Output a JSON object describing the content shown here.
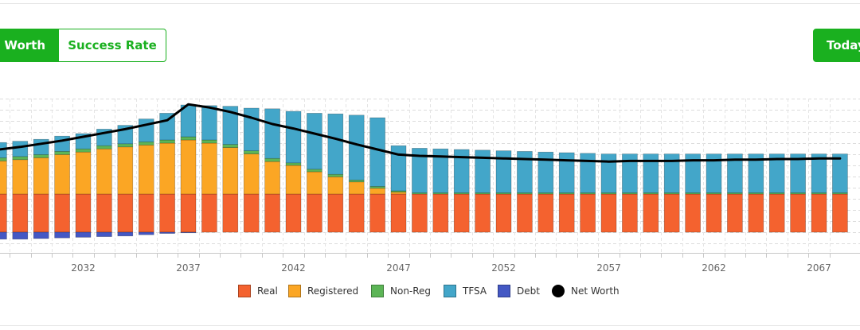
{
  "buttons": {
    "net_worth": "Net Worth",
    "success_rate": "Success Rate",
    "today": "Today's $"
  },
  "colors": {
    "real": "#f4622f",
    "registered": "#fba624",
    "nonreg": "#5cb556",
    "tfsa": "#43a6c9",
    "debt": "#4458c4",
    "networth": "#000000",
    "accent": "#1ab01f"
  },
  "chart_data": {
    "type": "bar",
    "stacked": true,
    "x": [
      2028,
      2029,
      2030,
      2031,
      2032,
      2033,
      2034,
      2035,
      2036,
      2037,
      2038,
      2039,
      2040,
      2041,
      2042,
      2043,
      2044,
      2045,
      2046,
      2047,
      2048,
      2049,
      2050,
      2051,
      2052,
      2053,
      2054,
      2055,
      2056,
      2057,
      2058,
      2059,
      2060,
      2061,
      2062,
      2063,
      2064,
      2065,
      2066,
      2067,
      2068
    ],
    "x_ticks": [
      "2032",
      "2037",
      "2042",
      "2047",
      "2052",
      "2057",
      "2062",
      "2067"
    ],
    "legend": [
      "Real",
      "Registered",
      "Non-Reg",
      "TFSA",
      "Debt",
      "Net Worth"
    ],
    "legend_placement": "bottom",
    "grid": true,
    "ylim": [
      -35,
      200
    ],
    "series": [
      {
        "name": "Real",
        "values": [
          60,
          60,
          60,
          60,
          60,
          60,
          60,
          60,
          60,
          60,
          60,
          60,
          60,
          60,
          60,
          60,
          60,
          60,
          60,
          60,
          60,
          60,
          60,
          60,
          60,
          60,
          60,
          60,
          60,
          60,
          60,
          60,
          60,
          60,
          60,
          60,
          60,
          60,
          60,
          60,
          60
        ]
      },
      {
        "name": "Registered",
        "values": [
          52,
          54,
          57,
          62,
          66,
          71,
          74,
          77,
          80,
          85,
          80,
          73,
          63,
          51,
          45,
          35,
          27,
          19,
          9,
          3,
          0,
          0,
          0,
          0,
          0,
          0,
          0,
          0,
          0,
          0,
          0,
          0,
          0,
          0,
          0,
          0,
          0,
          0,
          0,
          0,
          0
        ]
      },
      {
        "name": "Non-Reg",
        "values": [
          5,
          5,
          5,
          5,
          5,
          5,
          5,
          5,
          5,
          5,
          5,
          5,
          5,
          5,
          4,
          4,
          4,
          3,
          3,
          2,
          2,
          2,
          2,
          2,
          2,
          2,
          2,
          2,
          2,
          2,
          2,
          2,
          2,
          2,
          2,
          2,
          2,
          2,
          2,
          2,
          2
        ]
      },
      {
        "name": "TFSA",
        "values": [
          24,
          24,
          24,
          24,
          24,
          26,
          29,
          36,
          42,
          50,
          54,
          60,
          67,
          78,
          81,
          88,
          95,
          102,
          108,
          71,
          70,
          69,
          68,
          67,
          66,
          65,
          64,
          63,
          62,
          61,
          61,
          61,
          61,
          61,
          61,
          61,
          61,
          61,
          61,
          61,
          61
        ]
      },
      {
        "name": "Debt",
        "values": [
          -11,
          -11,
          -10,
          -9,
          -8,
          -7,
          -6,
          -4,
          -2,
          -1,
          0,
          0,
          0,
          0,
          0,
          0,
          0,
          0,
          0,
          0,
          0,
          0,
          0,
          0,
          0,
          0,
          0,
          0,
          0,
          0,
          0,
          0,
          0,
          0,
          0,
          0,
          0,
          0,
          0,
          0,
          0
        ]
      },
      {
        "name": "Net Worth",
        "type": "line",
        "values": [
          130,
          134,
          139,
          144,
          150,
          156,
          162,
          169,
          176,
          201,
          196,
          189,
          180,
          170,
          163,
          155,
          147,
          138,
          130,
          122,
          120,
          119,
          118,
          117,
          116,
          115,
          114,
          113,
          112,
          111,
          112,
          112,
          112,
          113,
          113,
          114,
          114,
          115,
          115,
          116,
          116
        ]
      }
    ]
  }
}
